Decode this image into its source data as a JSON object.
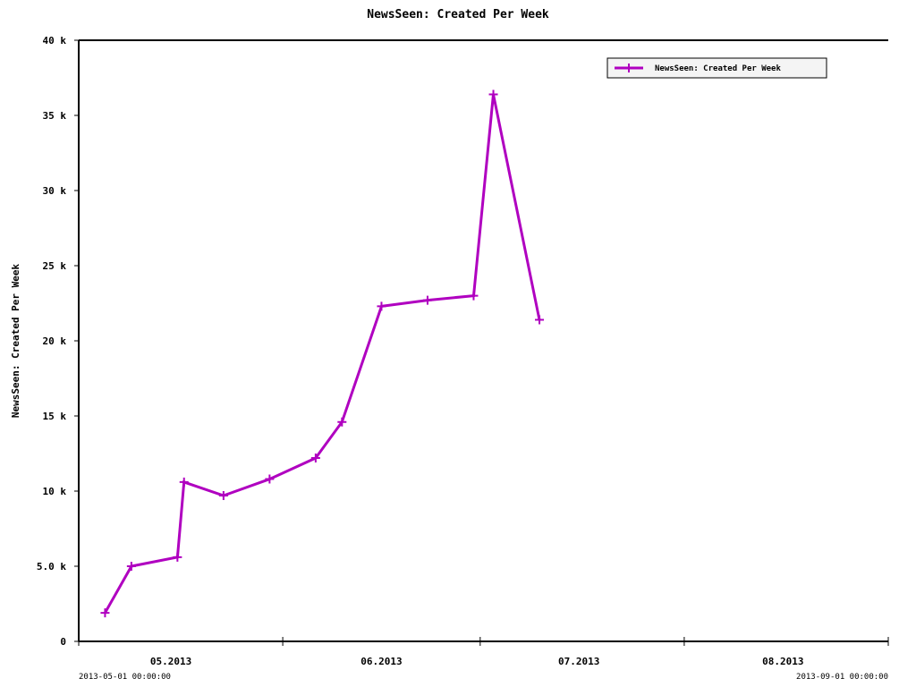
{
  "chart_data": {
    "type": "line",
    "title": "NewsSeen: Created Per Week",
    "ylabel": "NewsSeen: Created Per Week",
    "xlabel": "",
    "xlim": [
      "2013-05-01",
      "2013-09-01"
    ],
    "ylim": [
      0,
      40000
    ],
    "y_ticks": [
      {
        "value": 0,
        "label": "0"
      },
      {
        "value": 5000,
        "label": "5.0 k"
      },
      {
        "value": 10000,
        "label": "10 k"
      },
      {
        "value": 15000,
        "label": "15 k"
      },
      {
        "value": 20000,
        "label": "20 k"
      },
      {
        "value": 25000,
        "label": "25 k"
      },
      {
        "value": 30000,
        "label": "30 k"
      },
      {
        "value": 35000,
        "label": "35 k"
      },
      {
        "value": 40000,
        "label": "40 k"
      }
    ],
    "x_ticks": [
      {
        "date": "2013-05-01",
        "label": ""
      },
      {
        "date": "2013-05-15",
        "label": "05.2013"
      },
      {
        "date": "2013-06-01",
        "label": ""
      },
      {
        "date": "2013-06-16",
        "label": "06.2013"
      },
      {
        "date": "2013-07-01",
        "label": ""
      },
      {
        "date": "2013-07-16",
        "label": "07.2013"
      },
      {
        "date": "2013-08-01",
        "label": ""
      },
      {
        "date": "2013-08-16",
        "label": "08.2013"
      },
      {
        "date": "2013-09-01",
        "label": ""
      }
    ],
    "range_start_label": "2013-05-01 00:00:00",
    "range_end_label": "2013-09-01 00:00:00",
    "legend": {
      "position": "top-right"
    },
    "grid": false,
    "series": [
      {
        "name": "NewsSeen: Created Per Week",
        "color": "#b000c0",
        "marker": "plus",
        "points": [
          {
            "x": "2013-05-05",
            "y": 1900
          },
          {
            "x": "2013-05-09",
            "y": 5000
          },
          {
            "x": "2013-05-16",
            "y": 5600
          },
          {
            "x": "2013-05-17",
            "y": 10600
          },
          {
            "x": "2013-05-23",
            "y": 9700
          },
          {
            "x": "2013-05-30",
            "y": 10800
          },
          {
            "x": "2013-06-06",
            "y": 12200
          },
          {
            "x": "2013-06-10",
            "y": 14600
          },
          {
            "x": "2013-06-16",
            "y": 22300
          },
          {
            "x": "2013-06-23",
            "y": 22700
          },
          {
            "x": "2013-06-30",
            "y": 23000
          },
          {
            "x": "2013-07-03",
            "y": 36400
          },
          {
            "x": "2013-07-10",
            "y": 21400
          }
        ]
      }
    ]
  }
}
